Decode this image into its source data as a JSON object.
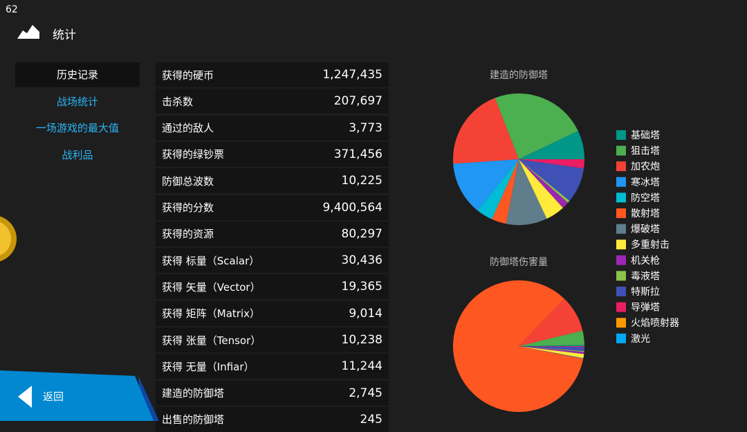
{
  "fps": "62",
  "header": {
    "title": "统计"
  },
  "menu": [
    "历史记录",
    "战场统计",
    "一场游戏的最大值",
    "战利品"
  ],
  "stats": {
    "rows": [
      [
        "获得的硬币",
        "1,247,435"
      ],
      [
        "击杀数",
        "207,697"
      ],
      [
        "通过的敌人",
        "3,773"
      ],
      [
        "获得的绿钞票",
        "371,456"
      ],
      [
        "防御总波数",
        "10,225"
      ],
      [
        "获得的分数",
        "9,400,564"
      ],
      [
        "获得的资源",
        "80,297"
      ],
      [
        "获得 标量（Scalar）",
        "30,436"
      ],
      [
        "获得 矢量（Vector）",
        "19,365"
      ],
      [
        "获得 矩阵（Matrix）",
        "9,014"
      ],
      [
        "获得 张量（Tensor）",
        "10,238"
      ],
      [
        "获得 无量（Infiar）",
        "11,244"
      ],
      [
        "建造的防御塔",
        "2,745"
      ],
      [
        "出售的防御塔",
        "245"
      ]
    ]
  },
  "back": "返回",
  "legend": [
    {
      "name": "基础塔",
      "color": "#009688"
    },
    {
      "name": "狙击塔",
      "color": "#4caf50"
    },
    {
      "name": "加农炮",
      "color": "#f44336"
    },
    {
      "name": "寒冰塔",
      "color": "#2196f3"
    },
    {
      "name": "防空塔",
      "color": "#00bcd4"
    },
    {
      "name": "散射塔",
      "color": "#ff5722"
    },
    {
      "name": "爆破塔",
      "color": "#607d8b"
    },
    {
      "name": "多重射击",
      "color": "#ffeb3b"
    },
    {
      "name": "机关枪",
      "color": "#9c27b0"
    },
    {
      "name": "毒液塔",
      "color": "#8bc34a"
    },
    {
      "name": "特斯拉",
      "color": "#3f51b5"
    },
    {
      "name": "导弹塔",
      "color": "#e91e63"
    },
    {
      "name": "火焰喷射器",
      "color": "#ff9800"
    },
    {
      "name": "激光",
      "color": "#03a9f4"
    }
  ],
  "charts": [
    {
      "type": "pie",
      "title": "建造的防御塔",
      "values": [
        7,
        23.6,
        20,
        13,
        4,
        3.6,
        10,
        4.7,
        1.7,
        0.6,
        8.6,
        2.2,
        0,
        0
      ]
    },
    {
      "type": "pie",
      "title": "防御塔伤害量",
      "values": [
        0.3,
        3.5,
        9,
        0,
        0,
        84,
        0.2,
        1,
        0.5,
        0.2,
        1,
        0.2,
        0,
        0
      ]
    }
  ]
}
